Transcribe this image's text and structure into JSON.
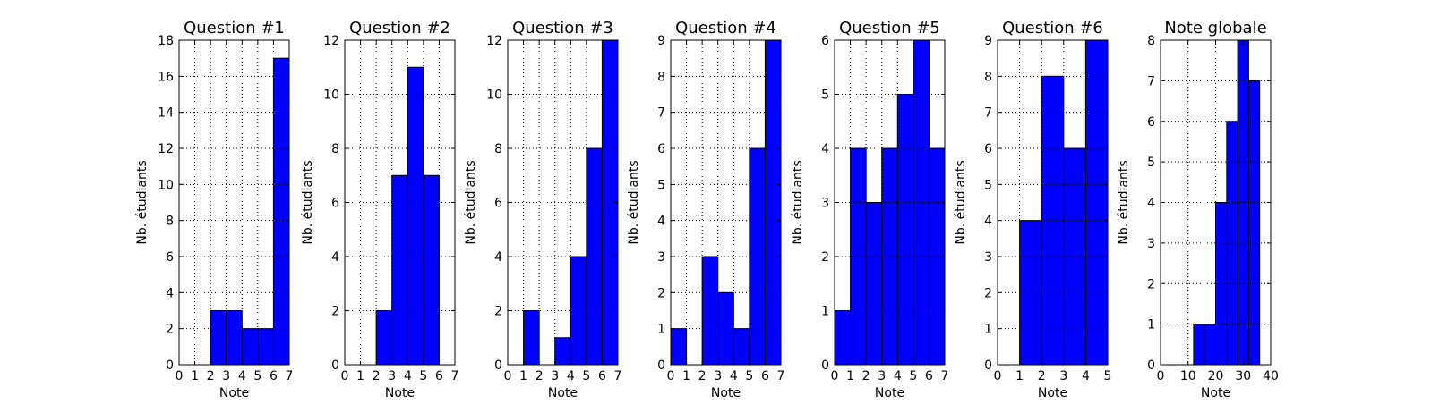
{
  "chart_data": [
    {
      "type": "bar",
      "title": "Question #1",
      "xlabel": "Note",
      "ylabel": "Nb. étudiants",
      "xlim": [
        0,
        7
      ],
      "ylim": [
        0,
        18
      ],
      "xticks": [
        0,
        1,
        2,
        3,
        4,
        5,
        6,
        7
      ],
      "yticks": [
        0,
        2,
        4,
        6,
        8,
        10,
        12,
        14,
        16,
        18
      ],
      "grid": true,
      "bar_color": "#0000ff",
      "bins": [
        {
          "x0": 2,
          "x1": 3,
          "count": 3
        },
        {
          "x0": 3,
          "x1": 4,
          "count": 3
        },
        {
          "x0": 4,
          "x1": 5,
          "count": 2
        },
        {
          "x0": 5,
          "x1": 6,
          "count": 2
        },
        {
          "x0": 6,
          "x1": 7,
          "count": 17
        }
      ]
    },
    {
      "type": "bar",
      "title": "Question #2",
      "xlabel": "Note",
      "ylabel": "Nb. étudiants",
      "xlim": [
        0,
        7
      ],
      "ylim": [
        0,
        12
      ],
      "xticks": [
        0,
        1,
        2,
        3,
        4,
        5,
        6,
        7
      ],
      "yticks": [
        0,
        2,
        4,
        6,
        8,
        10,
        12
      ],
      "grid": true,
      "bar_color": "#0000ff",
      "bins": [
        {
          "x0": 2,
          "x1": 3,
          "count": 2
        },
        {
          "x0": 3,
          "x1": 4,
          "count": 7
        },
        {
          "x0": 4,
          "x1": 5,
          "count": 11
        },
        {
          "x0": 5,
          "x1": 6,
          "count": 7
        }
      ]
    },
    {
      "type": "bar",
      "title": "Question #3",
      "xlabel": "Note",
      "ylabel": "Nb. étudiants",
      "xlim": [
        0,
        7
      ],
      "ylim": [
        0,
        12
      ],
      "xticks": [
        0,
        1,
        2,
        3,
        4,
        5,
        6,
        7
      ],
      "yticks": [
        0,
        2,
        4,
        6,
        8,
        10,
        12
      ],
      "grid": true,
      "bar_color": "#0000ff",
      "bins": [
        {
          "x0": 1,
          "x1": 2,
          "count": 2
        },
        {
          "x0": 3,
          "x1": 4,
          "count": 1
        },
        {
          "x0": 4,
          "x1": 5,
          "count": 4
        },
        {
          "x0": 5,
          "x1": 6,
          "count": 8
        },
        {
          "x0": 6,
          "x1": 7,
          "count": 12
        }
      ]
    },
    {
      "type": "bar",
      "title": "Question #4",
      "xlabel": "Note",
      "ylabel": "Nb. étudiants",
      "xlim": [
        0,
        7
      ],
      "ylim": [
        0,
        9
      ],
      "xticks": [
        0,
        1,
        2,
        3,
        4,
        5,
        6,
        7
      ],
      "yticks": [
        0,
        1,
        2,
        3,
        4,
        5,
        6,
        7,
        8,
        9
      ],
      "grid": true,
      "bar_color": "#0000ff",
      "bins": [
        {
          "x0": 0,
          "x1": 1,
          "count": 1
        },
        {
          "x0": 2,
          "x1": 3,
          "count": 3
        },
        {
          "x0": 3,
          "x1": 4,
          "count": 2
        },
        {
          "x0": 4,
          "x1": 5,
          "count": 1
        },
        {
          "x0": 5,
          "x1": 6,
          "count": 6
        },
        {
          "x0": 6,
          "x1": 7,
          "count": 9
        }
      ]
    },
    {
      "type": "bar",
      "title": "Question #5",
      "xlabel": "Note",
      "ylabel": "Nb. étudiants",
      "xlim": [
        0,
        7
      ],
      "ylim": [
        0,
        6
      ],
      "xticks": [
        0,
        1,
        2,
        3,
        4,
        5,
        6,
        7
      ],
      "yticks": [
        0,
        1,
        2,
        3,
        4,
        5,
        6
      ],
      "grid": true,
      "bar_color": "#0000ff",
      "bins": [
        {
          "x0": 0,
          "x1": 1,
          "count": 1
        },
        {
          "x0": 1,
          "x1": 2,
          "count": 4
        },
        {
          "x0": 2,
          "x1": 3,
          "count": 3
        },
        {
          "x0": 3,
          "x1": 4,
          "count": 4
        },
        {
          "x0": 4,
          "x1": 5,
          "count": 5
        },
        {
          "x0": 5,
          "x1": 6,
          "count": 6
        },
        {
          "x0": 6,
          "x1": 7,
          "count": 4
        }
      ]
    },
    {
      "type": "bar",
      "title": "Question #6",
      "xlabel": "Note",
      "ylabel": "Nb. étudiants",
      "xlim": [
        0,
        5
      ],
      "ylim": [
        0,
        9
      ],
      "xticks": [
        0,
        1,
        2,
        3,
        4,
        5
      ],
      "yticks": [
        0,
        1,
        2,
        3,
        4,
        5,
        6,
        7,
        8,
        9
      ],
      "grid": true,
      "bar_color": "#0000ff",
      "bins": [
        {
          "x0": 1,
          "x1": 2,
          "count": 4
        },
        {
          "x0": 2,
          "x1": 3,
          "count": 8
        },
        {
          "x0": 3,
          "x1": 4,
          "count": 6
        },
        {
          "x0": 4,
          "x1": 5,
          "count": 9
        }
      ]
    },
    {
      "type": "bar",
      "title": "Note globale",
      "xlabel": "Note",
      "ylabel": "Nb. étudiants",
      "xlim": [
        0,
        40
      ],
      "ylim": [
        0,
        8
      ],
      "xticks": [
        0,
        10,
        20,
        30,
        40
      ],
      "yticks": [
        0,
        1,
        2,
        3,
        4,
        5,
        6,
        7,
        8
      ],
      "grid": true,
      "bar_color": "#0000ff",
      "bins": [
        {
          "x0": 12,
          "x1": 16,
          "count": 1
        },
        {
          "x0": 16,
          "x1": 20,
          "count": 1
        },
        {
          "x0": 20,
          "x1": 24,
          "count": 4
        },
        {
          "x0": 24,
          "x1": 28,
          "count": 6
        },
        {
          "x0": 28,
          "x1": 32,
          "count": 8
        },
        {
          "x0": 32,
          "x1": 36,
          "count": 7
        }
      ]
    }
  ]
}
